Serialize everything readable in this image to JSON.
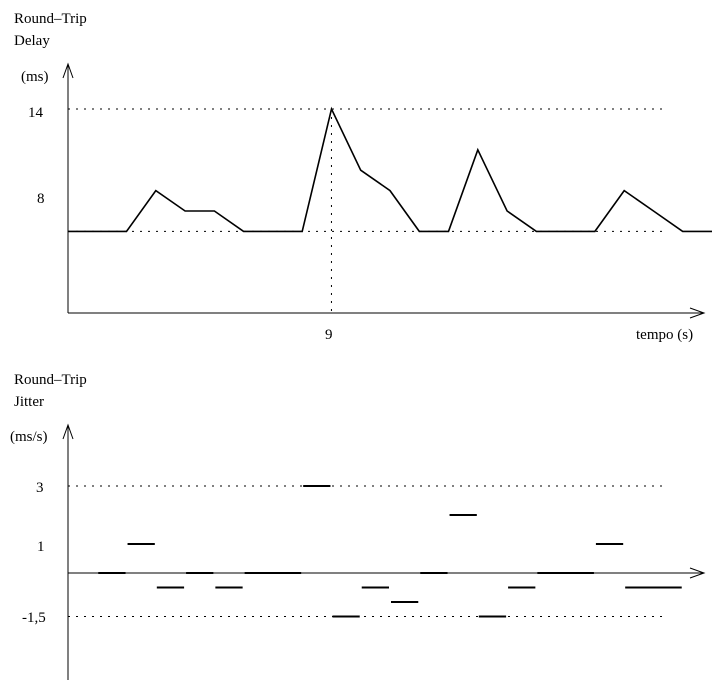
{
  "chart_data": [
    {
      "type": "line",
      "title_lines": [
        "Round–Trip",
        "Delay"
      ],
      "ylabel": "(ms)",
      "xlabel": "tempo (s)",
      "y_ticks": [
        "14",
        "8"
      ],
      "x_ticks": [
        "9"
      ],
      "ylim": [
        4,
        14
      ],
      "xlim": [
        0,
        22
      ],
      "ref_lines": [
        14,
        8
      ],
      "marker_x": 9,
      "x": [
        0,
        2,
        3,
        4,
        5,
        6,
        7,
        8,
        9,
        10,
        11,
        12,
        13,
        14,
        15,
        16,
        17,
        18,
        19,
        20,
        21,
        22
      ],
      "values": [
        8,
        8,
        10,
        9,
        9,
        8,
        8,
        8,
        14,
        11,
        10,
        8,
        8,
        12,
        9,
        8,
        8,
        8,
        10,
        9,
        8,
        8
      ]
    },
    {
      "type": "segments",
      "title_lines": [
        "Round–Trip",
        "Jitter"
      ],
      "ylabel": "(ms/s)",
      "y_ticks": [
        "3",
        "1",
        "-1,5"
      ],
      "ylim": [
        -2.5,
        3.5
      ],
      "xlim": [
        0,
        22
      ],
      "ref_lines": [
        3,
        -1.5
      ],
      "segments": [
        {
          "x0": 1,
          "x1": 2,
          "y": 0
        },
        {
          "x0": 2,
          "x1": 3,
          "y": 1
        },
        {
          "x0": 3,
          "x1": 4,
          "y": -0.5
        },
        {
          "x0": 4,
          "x1": 5,
          "y": 0
        },
        {
          "x0": 5,
          "x1": 6,
          "y": -0.5
        },
        {
          "x0": 6,
          "x1": 8,
          "y": 0
        },
        {
          "x0": 8,
          "x1": 9,
          "y": 3
        },
        {
          "x0": 9,
          "x1": 10,
          "y": -1.5
        },
        {
          "x0": 10,
          "x1": 11,
          "y": -0.5
        },
        {
          "x0": 11,
          "x1": 12,
          "y": -1
        },
        {
          "x0": 12,
          "x1": 13,
          "y": 0
        },
        {
          "x0": 13,
          "x1": 14,
          "y": 2
        },
        {
          "x0": 14,
          "x1": 15,
          "y": -1.5
        },
        {
          "x0": 15,
          "x1": 16,
          "y": -0.5
        },
        {
          "x0": 16,
          "x1": 18,
          "y": 0
        },
        {
          "x0": 18,
          "x1": 19,
          "y": 1
        },
        {
          "x0": 19,
          "x1": 21,
          "y": -0.5
        }
      ]
    }
  ]
}
